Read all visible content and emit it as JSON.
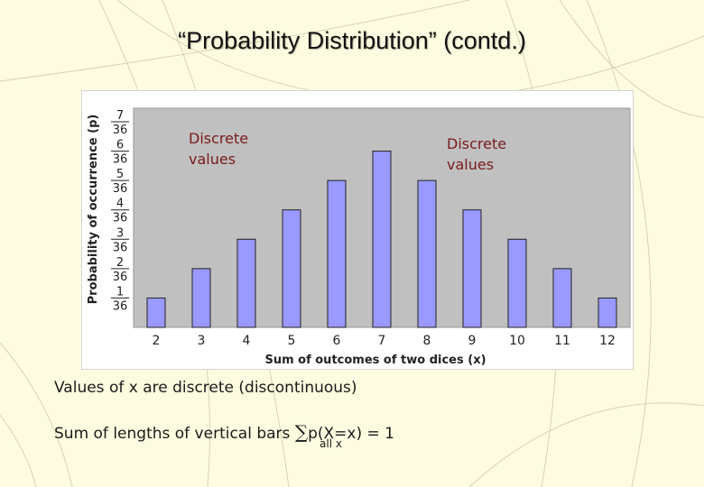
{
  "slide": {
    "title": "“Probability Distribution” (contd.)",
    "note_discrete": "Values of x are discrete (discontinuous)",
    "note_sum_prefix": "Sum of lengths of vertical bars",
    "sum_symbol": "∑",
    "sum_expression": "p(X=x) = 1",
    "sum_subscript": "all x"
  },
  "chart_data": {
    "type": "bar",
    "categories": [
      "2",
      "3",
      "4",
      "5",
      "6",
      "7",
      "8",
      "9",
      "10",
      "11",
      "12"
    ],
    "values": [
      1,
      2,
      3,
      4,
      5,
      6,
      5,
      4,
      3,
      2,
      1
    ],
    "value_denominator": 36,
    "ytick_numerators": [
      "1",
      "2",
      "3",
      "4",
      "5",
      "6",
      "7"
    ],
    "ytick_denominator": "36",
    "ylim": [
      0,
      7
    ],
    "xlabel": "Sum of outcomes of two dices (x)",
    "ylabel": "Probability of occurrence (p)",
    "title": "",
    "grid": false,
    "annotations": [
      "Discrete values",
      "Discrete values"
    ],
    "colors": {
      "bar_fill": "#9999ff",
      "bar_stroke": "#222222",
      "plot_background": "#c0c0c0",
      "panel_background": "#ffffff",
      "annotation_text": "#7a1a1a"
    }
  }
}
